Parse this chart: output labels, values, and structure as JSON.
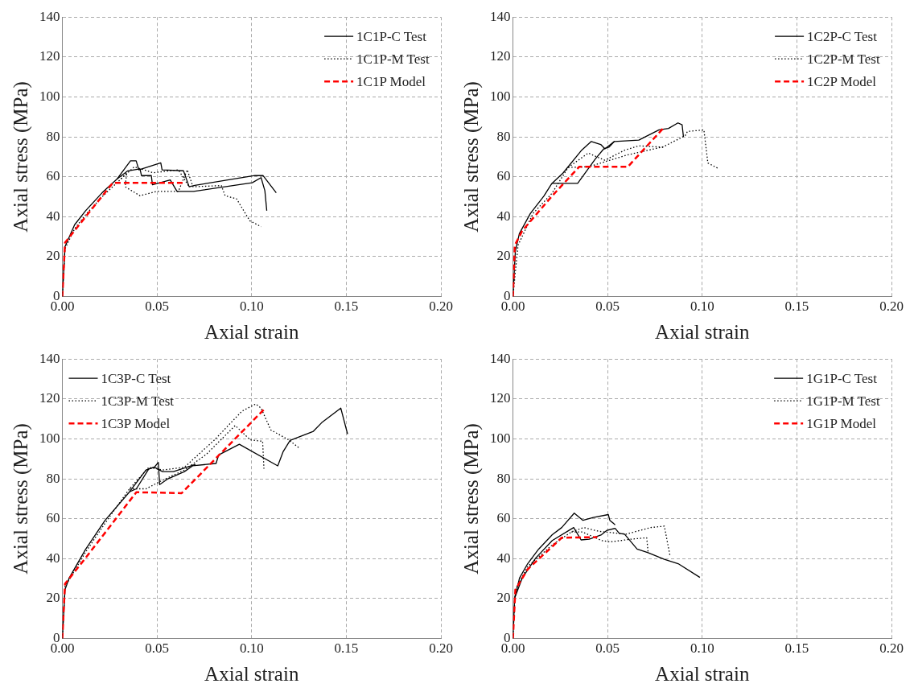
{
  "chart_data": [
    {
      "type": "line",
      "xlabel": "Axial strain",
      "ylabel": "Axial stress (MPa)",
      "xlim": [
        0,
        0.2
      ],
      "ylim": [
        0,
        140
      ],
      "xticks": [
        {
          "value": 0,
          "label": "0.00"
        },
        {
          "value": 0.05,
          "label": "0.05"
        },
        {
          "value": 0.1,
          "label": "0.10"
        },
        {
          "value": 0.15,
          "label": "0.15"
        },
        {
          "value": 0.2,
          "label": "0.20"
        }
      ],
      "yticks": [
        0,
        20,
        40,
        60,
        80,
        100,
        120,
        140
      ],
      "grid": true,
      "legend": "top right",
      "marker": "none",
      "series": [
        {
          "name": "1C1P-C Test",
          "color": "#000000",
          "line_style": "solid",
          "x": [
            0,
            0.0014,
            0.0065,
            0.0123,
            0.021,
            0.029,
            0.036,
            0.039,
            0.0404,
            0.052,
            0.0527,
            0.064,
            0.067,
            0.07,
            0.1017,
            0.106,
            0.113
          ],
          "values": [
            0,
            25,
            36,
            43,
            52,
            59,
            68,
            68,
            63.5,
            67,
            63.5,
            63,
            55,
            55.7,
            60.6,
            60.6,
            52
          ]
        },
        {
          "color": "#000000",
          "line_style": "solid",
          "x": [
            0.029,
            0.0346,
            0.041,
            0.0418,
            0.047,
            0.0476,
            0.057,
            0.0606,
            0.0693,
            0.093,
            0.1003,
            0.105,
            0.107,
            0.108
          ],
          "values": [
            59,
            63,
            64,
            60.6,
            60.6,
            56,
            58.4,
            52.7,
            52.7,
            56,
            57,
            59.6,
            53,
            43
          ]
        },
        {
          "name": "1C1P-M Test",
          "color": "#000000",
          "line_style": "dotted",
          "x": [
            0,
            0.0014,
            0.0065,
            0.0123,
            0.021,
            0.031,
            0.034,
            0.0332,
            0.041,
            0.0498,
            0.0613,
            0.066,
            0.069,
            0.084,
            0.086,
            0.092,
            0.099,
            0.105
          ],
          "values": [
            0,
            24,
            34,
            41,
            50,
            59,
            62,
            55,
            50.5,
            52.7,
            52.7,
            63.5,
            55,
            55.6,
            50.5,
            49,
            38,
            35
          ]
        },
        {
          "color": "#000000",
          "line_style": "dotted",
          "x": [
            0.031,
            0.038,
            0.048,
            0.0613,
            0.067
          ],
          "values": [
            59,
            65,
            62,
            63.5,
            55
          ]
        },
        {
          "name": "1C1P Model",
          "color": "#ff0000",
          "line_style": "dashed",
          "x": [
            0,
            0.0014,
            0.0123,
            0.0267,
            0.0635
          ],
          "values": [
            0,
            27,
            40,
            57,
            57
          ]
        }
      ]
    },
    {
      "type": "line",
      "xlabel": "Axial strain",
      "ylabel": "Axial stress (MPa)",
      "xlim": [
        0,
        0.2
      ],
      "ylim": [
        0,
        140
      ],
      "xticks": [
        {
          "value": 0,
          "label": "0.00"
        },
        {
          "value": 0.05,
          "label": "0.05"
        },
        {
          "value": 0.1,
          "label": "0.10"
        },
        {
          "value": 0.15,
          "label": "0.15"
        },
        {
          "value": 0.2,
          "label": "0.20"
        }
      ],
      "yticks": [
        0,
        20,
        40,
        60,
        80,
        100,
        120,
        140
      ],
      "grid": true,
      "legend": "top right",
      "marker": "none",
      "series": [
        {
          "name": "1C2P-C Test",
          "color": "#000000",
          "line_style": "solid",
          "x": [
            0,
            0.0013,
            0.0034,
            0.0092,
            0.0163,
            0.0206,
            0.0264,
            0.0364,
            0.0414,
            0.0464,
            0.0486,
            0.0536,
            0.0665,
            0.0772,
            0.0822,
            0.0872,
            0.0894,
            0.0901
          ],
          "values": [
            0,
            22.8,
            31.5,
            41.6,
            50.3,
            56.7,
            61.8,
            73.4,
            77.7,
            76.2,
            74,
            77.7,
            78.4,
            83.5,
            84.2,
            87,
            86,
            80
          ]
        },
        {
          "color": "#000000",
          "line_style": "solid",
          "x": [
            0.0206,
            0.0342,
            0.0436,
            0.048,
            0.0507,
            0.0536
          ],
          "values": [
            56.7,
            56.7,
            69,
            74,
            74.8,
            77.7
          ]
        },
        {
          "name": "1C2P-M Test",
          "color": "#000000",
          "line_style": "dotted",
          "x": [
            0,
            0.0027,
            0.0106,
            0.0206,
            0.0292,
            0.0335,
            0.0398,
            0.045,
            0.0486,
            0.0592,
            0.0665,
            0.0794
          ],
          "values": [
            0,
            25.7,
            41.6,
            51.7,
            64.7,
            67.6,
            71.9,
            69.7,
            68.3,
            73.4,
            75.5,
            74.8
          ]
        },
        {
          "color": "#000000",
          "line_style": "dotted",
          "x": [
            0.0292,
            0.0398,
            0.0607,
            0.0794,
            0.091,
            0.0922,
            0.1009,
            0.103,
            0.1088
          ],
          "values": [
            64.7,
            65,
            71,
            75,
            80.6,
            82.7,
            83.5,
            66.9,
            64
          ]
        },
        {
          "name": "1C2P Model",
          "color": "#ff0000",
          "line_style": "dashed",
          "x": [
            0,
            0.001,
            0.0049,
            0.0206,
            0.035,
            0.0607,
            0.0801
          ],
          "values": [
            0,
            25.7,
            32.9,
            50.3,
            65,
            65,
            85
          ]
        }
      ]
    },
    {
      "type": "line",
      "xlabel": "Axial strain",
      "ylabel": "Axial stress (MPa)",
      "xlim": [
        0,
        0.2
      ],
      "ylim": [
        0,
        140
      ],
      "xticks": [
        {
          "value": 0,
          "label": "0.00"
        },
        {
          "value": 0.05,
          "label": "0.05"
        },
        {
          "value": 0.1,
          "label": "0.10"
        },
        {
          "value": 0.15,
          "label": "0.15"
        },
        {
          "value": 0.2,
          "label": "0.20"
        }
      ],
      "yticks": [
        0,
        20,
        40,
        60,
        80,
        100,
        120,
        140
      ],
      "grid": true,
      "legend": "top left",
      "marker": "none",
      "series": [
        {
          "name": "1C3P-C Test",
          "color": "#000000",
          "line_style": "solid",
          "x": [
            0,
            0.0014,
            0.0036,
            0.0123,
            0.0225,
            0.0355,
            0.0442,
            0.0486,
            0.0507,
            0.0514,
            0.0558,
            0.0645,
            0.0688,
            0.0812,
            0.0826,
            0.0935,
            0.1138,
            0.1167,
            0.1203,
            0.1326,
            0.137,
            0.1471,
            0.1507
          ],
          "values": [
            0,
            24.5,
            30.3,
            44.7,
            59.1,
            73.5,
            84.4,
            85.8,
            88.2,
            77.1,
            80,
            83.6,
            86.5,
            87.7,
            92,
            97.3,
            86.5,
            93.7,
            99.2,
            103.8,
            108.1,
            115.4,
            102.4
          ]
        },
        {
          "color": "#000000",
          "line_style": "solid",
          "x": [
            0.0355,
            0.0391,
            0.0457,
            0.0486,
            0.0529,
            0.0587,
            0.0703
          ],
          "values": [
            73.5,
            75,
            85,
            85.8,
            83.6,
            83.6,
            87.2
          ]
        },
        {
          "name": "1C3P-M Test",
          "color": "#000000",
          "line_style": "dotted",
          "x": [
            0,
            0.0014,
            0.0123,
            0.0225,
            0.0355,
            0.0457,
            0.0529,
            0.0645,
            0.0804,
            0.0949,
            0.1022,
            0.105,
            0.1101,
            0.1196,
            0.1254
          ],
          "values": [
            0,
            26,
            43.3,
            57.7,
            75,
            85.8,
            84.4,
            85.8,
            99.5,
            113.9,
            117.5,
            115.4,
            104.5,
            99.5,
            95.2
          ]
        },
        {
          "color": "#000000",
          "line_style": "dotted",
          "x": [
            0.0355,
            0.0442,
            0.0529,
            0.0645,
            0.0761,
            0.0913,
            0.0993,
            0.1058,
            0.1065
          ],
          "values": [
            75,
            75,
            79.3,
            84.4,
            92.3,
            106.7,
            99.5,
            98.8,
            85.1
          ]
        },
        {
          "name": "1C3P Model",
          "color": "#ff0000",
          "line_style": "dashed",
          "x": [
            0,
            0.0014,
            0.0123,
            0.0391,
            0.063,
            0.1072
          ],
          "values": [
            0,
            27.4,
            40.4,
            73.3,
            72.8,
            115.4
          ]
        }
      ]
    },
    {
      "type": "line",
      "xlabel": "Axial strain",
      "ylabel": "Axial stress (MPa)",
      "xlim": [
        0,
        0.2
      ],
      "ylim": [
        0,
        140
      ],
      "xticks": [
        {
          "value": 0,
          "label": "0.00"
        },
        {
          "value": 0.05,
          "label": "0.05"
        },
        {
          "value": 0.1,
          "label": "0.10"
        },
        {
          "value": 0.15,
          "label": "0.15"
        },
        {
          "value": 0.2,
          "label": "0.20"
        }
      ],
      "yticks": [
        0,
        20,
        40,
        60,
        80,
        100,
        120,
        140
      ],
      "grid": true,
      "legend": "top right",
      "marker": "none",
      "series": [
        {
          "name": "1G1P-C Test",
          "color": "#000000",
          "line_style": "solid",
          "x": [
            0,
            0.0009,
            0.0035,
            0.0078,
            0.0136,
            0.0208,
            0.0258,
            0.0324,
            0.037,
            0.0425,
            0.0504,
            0.0512,
            0.054
          ],
          "values": [
            0,
            20.2,
            30.3,
            37.5,
            44.8,
            52,
            55.6,
            62.8,
            59.2,
            60.6,
            62.1,
            59.2,
            57
          ]
        },
        {
          "color": "#000000",
          "line_style": "solid",
          "x": [
            0.0009,
            0.0049,
            0.0121,
            0.0208,
            0.0321,
            0.036,
            0.0403,
            0.0468,
            0.0497,
            0.054,
            0.0562,
            0.059,
            0.0656,
            0.0714,
            0.08,
            0.0873,
            0.0988
          ],
          "values": [
            20.2,
            30.3,
            40.4,
            49.1,
            55.6,
            49.4,
            49.8,
            52,
            54.2,
            55.2,
            52.7,
            52.3,
            44.8,
            43,
            39.7,
            37.5,
            30.6
          ]
        },
        {
          "name": "1G1P-M Test",
          "color": "#000000",
          "line_style": "dotted",
          "x": [
            0,
            0.0013,
            0.0078,
            0.0208,
            0.0309,
            0.0374,
            0.0454,
            0.0598,
            0.0728,
            0.08,
            0.0829
          ],
          "values": [
            0,
            24.5,
            36.1,
            46.9,
            53.4,
            55.6,
            53.7,
            52.3,
            55.6,
            56.3,
            41.9
          ]
        },
        {
          "color": "#000000",
          "line_style": "dotted",
          "x": [
            0.0309,
            0.0367,
            0.0468,
            0.0512,
            0.0627,
            0.0707,
            0.0714
          ],
          "values": [
            53.4,
            53.4,
            49.1,
            48.4,
            49.8,
            50.5,
            43.3
          ]
        },
        {
          "name": "1G1P Model",
          "color": "#ff0000",
          "line_style": "dashed",
          "x": [
            0,
            0.0013,
            0.0078,
            0.0258,
            0.0446
          ],
          "values": [
            0,
            24.5,
            34.7,
            50.5,
            50.8
          ]
        }
      ]
    }
  ]
}
